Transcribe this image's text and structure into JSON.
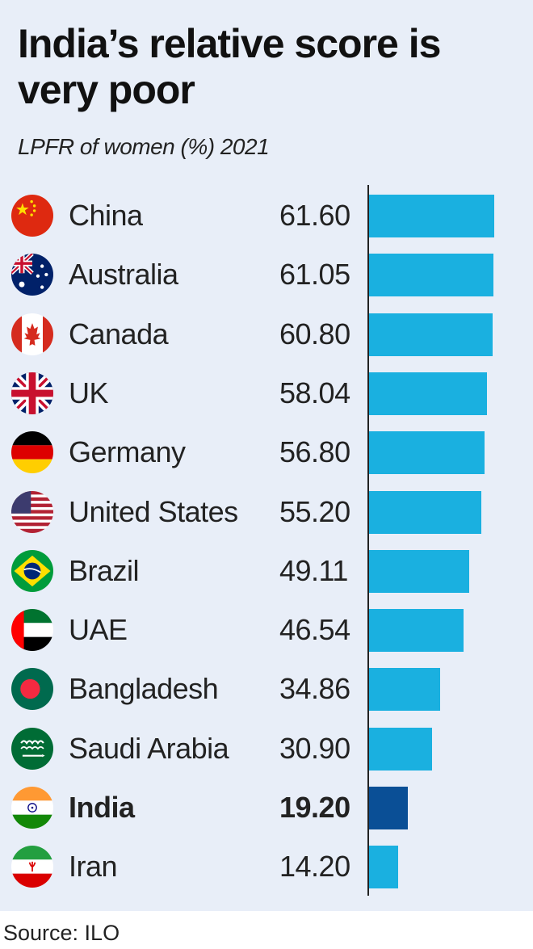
{
  "title": "India’s relative score is very poor",
  "subtitle": "LPFR of women (%) 2021",
  "source": "Source: ILO",
  "colors": {
    "background": "#e8eef8",
    "bar": "#1ab0e0",
    "highlight_bar": "#0a4f96",
    "axis": "#222222"
  },
  "chart_data": {
    "type": "bar",
    "orientation": "horizontal",
    "title": "India’s relative score is very poor",
    "subtitle": "LPFR of women (%) 2021",
    "categories": [
      "China",
      "Australia",
      "Canada",
      "UK",
      "Germany",
      "United States",
      "Brazil",
      "UAE",
      "Bangladesh",
      "Saudi Arabia",
      "India",
      "Iran"
    ],
    "labels": [
      "61.60",
      "61.05",
      "60.80",
      "58.04",
      "56.80",
      "55.20",
      "49.11",
      "46.54",
      "34.86",
      "30.90",
      "19.20",
      "14.20"
    ],
    "values": [
      61.6,
      61.05,
      60.8,
      58.04,
      56.8,
      55.2,
      49.11,
      46.54,
      34.86,
      30.9,
      19.2,
      14.2
    ],
    "flags": [
      "china-flag-icon",
      "australia-flag-icon",
      "canada-flag-icon",
      "uk-flag-icon",
      "germany-flag-icon",
      "united-states-flag-icon",
      "brazil-flag-icon",
      "uae-flag-icon",
      "bangladesh-flag-icon",
      "saudi-arabia-flag-icon",
      "india-flag-icon",
      "iran-flag-icon"
    ],
    "highlight": "India",
    "xlim": [
      0,
      61.6
    ],
    "grid": false,
    "legend": "none"
  }
}
